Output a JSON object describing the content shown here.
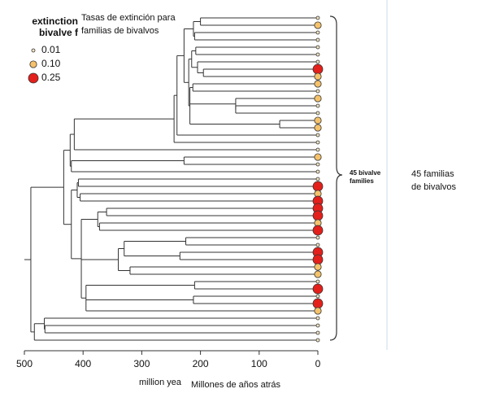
{
  "chart_data": {
    "type": "tree",
    "title": [
      "Tasas de extinción para",
      "familias de bivalvos"
    ],
    "legend_title": [
      "extinction",
      "bivalve f"
    ],
    "legend": [
      {
        "value": 0.01,
        "label": "0.01",
        "color": "#f3e6c4"
      },
      {
        "value": 0.1,
        "label": "0.10",
        "color": "#f5c26b"
      },
      {
        "value": 0.25,
        "label": "0.25",
        "color": "#e3201b"
      }
    ],
    "bracket_label": [
      "45 bivalve",
      "families"
    ],
    "annotation": [
      "45 familias",
      "de bivalvos"
    ],
    "xlabel": "million yea",
    "xlabel_translation": "Millones de años atrás",
    "xlim": [
      500,
      0
    ],
    "xticks": [
      500,
      400,
      300,
      200,
      100,
      0
    ],
    "tree": {
      "age": 489,
      "children": [
        {
          "age": 433,
          "children": [
            {
              "age": 422,
              "children": [
                {
                  "age": 415,
                  "children": [
                    {
                      "age": 245,
                      "children": [
                        {
                          "age": 240,
                          "children": [
                            {
                              "age": 228,
                              "children": [
                                {
                                  "age": 212,
                                  "children": [
                                    {
                                      "age": 200,
                                      "children": [
                                        {
                                          "rate": 0.01
                                        },
                                        {
                                          "rate": 0.1
                                        }
                                      ]
                                    },
                                    {
                                      "age": 210,
                                      "children": [
                                        {
                                          "rate": 0.01
                                        },
                                        {
                                          "rate": 0.01
                                        }
                                      ]
                                    }
                                  ]
                                },
                                {
                                  "age": 220,
                                  "children": [
                                    {
                                      "age": 215,
                                      "children": [
                                        {
                                          "age": 208,
                                          "children": [
                                            {
                                              "rate": 0.01
                                            },
                                            {
                                              "rate": 0.01
                                            }
                                          ]
                                        },
                                        {
                                          "age": 205,
                                          "children": [
                                            {
                                              "rate": 0.01
                                            },
                                            {
                                              "age": 195,
                                              "children": [
                                                {
                                                  "rate": 0.25
                                                },
                                                {
                                                  "rate": 0.1
                                                }
                                              ]
                                            }
                                          ]
                                        }
                                      ]
                                    },
                                    {
                                      "age": 218,
                                      "children": [
                                        {
                                          "age": 213,
                                          "children": [
                                            {
                                              "rate": 0.1
                                            },
                                            {
                                              "rate": 0.01
                                            }
                                          ]
                                        },
                                        {
                                          "age": 140,
                                          "children": [
                                            {
                                              "rate": 0.1
                                            },
                                            {
                                              "age": 140,
                                              "children": [
                                                {
                                                  "rate": 0.01
                                                },
                                                {
                                                  "rate": 0.01
                                                }
                                              ]
                                            }
                                          ]
                                        },
                                        {
                                          "age": 65,
                                          "children": [
                                            {
                                              "rate": 0.1
                                            },
                                            {
                                              "rate": 0.1
                                            }
                                          ]
                                        }
                                      ]
                                    }
                                  ]
                                }
                              ]
                            },
                            {
                              "rate": 0.01
                            }
                          ]
                        },
                        {
                          "rate": 0.01
                        }
                      ]
                    },
                    {
                      "rate": 0.01
                    }
                  ]
                },
                {
                  "age": 420,
                  "children": [
                    {
                      "age": 228,
                      "children": [
                        {
                          "rate": 0.1
                        },
                        {
                          "rate": 0.01
                        }
                      ]
                    },
                    {
                      "rate": 0.01
                    }
                  ]
                }
              ]
            },
            {
              "age": 420,
              "children": [
                {
                  "age": 410,
                  "children": [
                    {
                      "age": 408,
                      "children": [
                        {
                          "rate": 0.01
                        },
                        {
                          "rate": 0.25
                        }
                      ]
                    },
                    {
                      "age": 405,
                      "children": [
                        {
                          "rate": 0.1
                        },
                        {
                          "rate": 0.25
                        }
                      ]
                    }
                  ]
                },
                {
                  "age": 403,
                  "children": [
                    {
                      "age": 375,
                      "children": [
                        {
                          "age": 360,
                          "children": [
                            {
                              "rate": 0.25
                            },
                            {
                              "rate": 0.25
                            }
                          ]
                        },
                        {
                          "age": 372,
                          "children": [
                            {
                              "rate": 0.1
                            },
                            {
                              "rate": 0.25
                            }
                          ]
                        }
                      ]
                    },
                    {
                      "age": 340,
                      "children": [
                        {
                          "age": 330,
                          "children": [
                            {
                              "age": 225,
                              "children": [
                                {
                                  "rate": 0.01
                                },
                                {
                                  "rate": 0.01
                                }
                              ]
                            },
                            {
                              "age": 235,
                              "children": [
                                {
                                  "rate": 0.25
                                },
                                {
                                  "rate": 0.25
                                }
                              ]
                            }
                          ]
                        },
                        {
                          "age": 320,
                          "children": [
                            {
                              "rate": 0.1
                            },
                            {
                              "rate": 0.1
                            }
                          ]
                        }
                      ]
                    },
                    {
                      "age": 395,
                      "children": [
                        {
                          "age": 210,
                          "children": [
                            {
                              "rate": 0.01
                            },
                            {
                              "rate": 0.25
                            }
                          ]
                        },
                        {
                          "age": 212,
                          "children": [
                            {
                              "rate": 0.01
                            },
                            {
                              "rate": 0.25
                            }
                          ]
                        },
                        {
                          "rate": 0.1
                        }
                      ]
                    }
                  ]
                }
              ]
            }
          ]
        },
        {
          "age": 483,
          "children": [
            {
              "age": 466,
              "children": [
                {
                  "rate": 0.01
                },
                {
                  "age": 465,
                  "children": [
                    {
                      "rate": 0.01
                    },
                    {
                      "rate": 0.01
                    }
                  ]
                }
              ]
            },
            {
              "rate": 0.01
            }
          ]
        }
      ]
    }
  }
}
